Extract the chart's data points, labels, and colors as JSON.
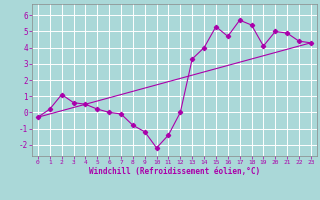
{
  "xlabel": "Windchill (Refroidissement éolien,°C)",
  "ylabel": "",
  "background_color": "#aad8d8",
  "grid_color": "#ffffff",
  "line_color": "#aa00aa",
  "xlim": [
    -0.5,
    23.5
  ],
  "ylim": [
    -2.7,
    6.7
  ],
  "xticks": [
    0,
    1,
    2,
    3,
    4,
    5,
    6,
    7,
    8,
    9,
    10,
    11,
    12,
    13,
    14,
    15,
    16,
    17,
    18,
    19,
    20,
    21,
    22,
    23
  ],
  "yticks": [
    -2,
    -1,
    0,
    1,
    2,
    3,
    4,
    5,
    6
  ],
  "line1_x": [
    0,
    1,
    2,
    3,
    4,
    5,
    6,
    7,
    8,
    9,
    10,
    11,
    12,
    13,
    14,
    15,
    16,
    17,
    18,
    19,
    20,
    21,
    22,
    23
  ],
  "line1_y": [
    -0.3,
    0.2,
    1.1,
    0.6,
    0.5,
    0.2,
    0.0,
    -0.1,
    -0.8,
    -1.2,
    -2.2,
    -1.4,
    0.0,
    3.3,
    4.0,
    5.3,
    4.7,
    5.7,
    5.4,
    4.1,
    5.0,
    4.9,
    4.4,
    4.3
  ],
  "line2_x": [
    0,
    23
  ],
  "line2_y": [
    -0.3,
    4.3
  ],
  "marker": "D",
  "marker_size": 2.2,
  "line_width": 0.8
}
